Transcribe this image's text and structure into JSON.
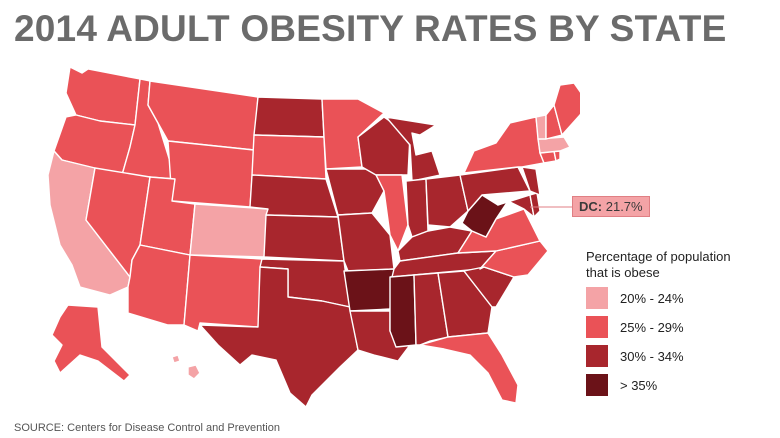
{
  "title": "2014 ADULT OBESITY RATES BY STATE",
  "dc_callout": {
    "label": "DC:",
    "value": "21.7%"
  },
  "legend": {
    "title_line1": "Percentage of population",
    "title_line2": "that is obese",
    "items": [
      {
        "label": "20% - 24%",
        "color": "#f4a3a6"
      },
      {
        "label": "25% - 29%",
        "color": "#ea5257"
      },
      {
        "label": "30% - 34%",
        "color": "#a8262d"
      },
      {
        "label": "> 35%",
        "color": "#6b1218"
      }
    ]
  },
  "source": "SOURCE: Centers for Disease Control and Prevention",
  "colors": {
    "title": "#6b6b6b",
    "border": "#ffffff"
  }
}
